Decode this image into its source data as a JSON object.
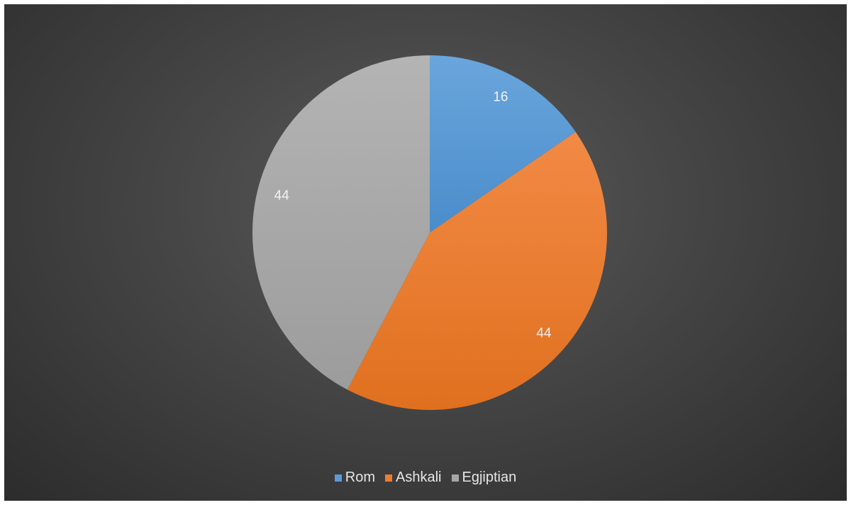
{
  "chart_data": {
    "type": "pie",
    "categories": [
      "Rom",
      "Ashkali",
      "Egjiptian"
    ],
    "values": [
      16,
      44,
      44
    ],
    "data_labels": [
      "16",
      "44",
      "44"
    ],
    "colors": [
      "#5b9bd5",
      "#ed7d31",
      "#a5a5a5"
    ],
    "start_angle": "12 o'clock",
    "direction": "clockwise",
    "legend_position": "bottom",
    "title": ""
  },
  "legend": {
    "items": [
      {
        "label": "Rom",
        "color": "#5b9bd5"
      },
      {
        "label": "Ashkali",
        "color": "#ed7d31"
      },
      {
        "label": "Egjiptian",
        "color": "#a5a5a5"
      }
    ]
  }
}
